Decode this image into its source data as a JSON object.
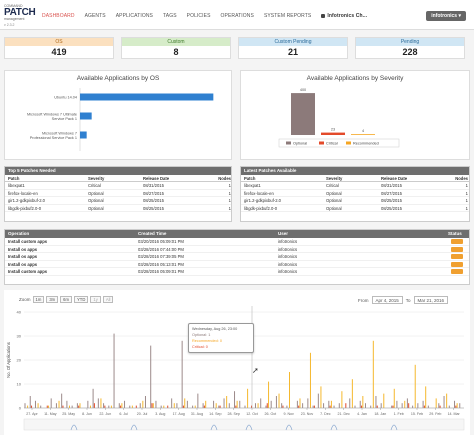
{
  "logo": {
    "line1": "COMMAND",
    "line2": "PATCH",
    "line3": "management",
    "version": "v 2.3.2"
  },
  "nav": {
    "items": [
      "DASHBOARD",
      "AGENTS",
      "APPLICATIONS",
      "TAGS",
      "POLICIES",
      "OPERATIONS",
      "SYSTEM REPORTS"
    ],
    "org": "Infotronics Ch...",
    "user": "infotronics"
  },
  "stats": [
    {
      "label": "OS",
      "value": "419",
      "color": "#fbe0bf"
    },
    {
      "label": "Custom",
      "value": "8",
      "color": "#d6ecc9"
    },
    {
      "label": "Custom Pending",
      "value": "21",
      "color": "#d0e6f4"
    },
    {
      "label": "Pending",
      "value": "228",
      "color": "#d0e6f4"
    }
  ],
  "chart_os": {
    "title": "Available Applications by OS",
    "type": "bar",
    "categories": [
      "Ubuntu 14.04",
      "Microsoft Windows 7 Ultimate Service Pack 1",
      "Microsoft Windows 7 Professional Service Pack 1"
    ],
    "values": [
      400,
      35,
      20
    ],
    "max": 420,
    "color": "#2f80d0"
  },
  "chart_sev": {
    "title": "Available Applications by Severity",
    "type": "bar",
    "categories": [
      "Optional",
      "Critical",
      "Recommended"
    ],
    "values": [
      400,
      23,
      4
    ],
    "max": 420,
    "colors": [
      "#8c7a7a",
      "#e34a2a",
      "#f5a623"
    ]
  },
  "top_patches": {
    "title": "Top 5 Patches Needed",
    "columns": [
      "Patch",
      "Severity",
      "Release Date",
      "Nodes"
    ],
    "rows": [
      [
        "libexpat1",
        "Critical",
        "08/31/2015",
        "1"
      ],
      [
        "firefox-locale-en",
        "Optional",
        "08/27/2015",
        "1"
      ],
      [
        "gir1.2-gdkpixbuf-2.0",
        "Optional",
        "08/25/2015",
        "1"
      ],
      [
        "libgdk-pixbuf2.0-0",
        "Optional",
        "08/25/2015",
        "1"
      ]
    ]
  },
  "latest_patches": {
    "title": "Latest Patches Available",
    "columns": [
      "Patch",
      "Severity",
      "Release Date",
      "Nodes"
    ],
    "rows": [
      [
        "libexpat1",
        "Critical",
        "08/31/2015",
        "1"
      ],
      [
        "firefox-locale-en",
        "Optional",
        "08/27/2015",
        "1"
      ],
      [
        "gir1.2-gdkpixbuf-2.0",
        "Optional",
        "08/25/2015",
        "1"
      ],
      [
        "libgdk-pixbuf2.0-0",
        "Optional",
        "08/25/2015",
        "1"
      ]
    ]
  },
  "operations": {
    "columns": [
      "Operation",
      "Created Time",
      "User",
      "Status"
    ],
    "rows": [
      [
        "Install custom apps",
        "03/20/2016 05:09:01 PM",
        "infotronics"
      ],
      [
        "Install os apps",
        "03/28/2016 07:44:00 PM",
        "infotronics"
      ],
      [
        "Install os apps",
        "03/28/2016 07:39:05 PM",
        "infotronics"
      ],
      [
        "Install os apps",
        "03/28/2016 05:13:01 PM",
        "infotronics"
      ],
      [
        "Install custom apps",
        "03/28/2016 05:09:01 PM",
        "infotronics"
      ]
    ]
  },
  "timeline": {
    "zoom_label": "Zoom",
    "zoom_buttons": [
      "1m",
      "3m",
      "6m",
      "YTD",
      "1y",
      "All"
    ],
    "from_label": "From",
    "from_date": "Apr 4, 2015",
    "to_label": "To",
    "to_date": "Mar 21, 2016",
    "ylabel": "No. Of Applications",
    "yticks": [
      "0",
      "10",
      "20",
      "30",
      "40"
    ],
    "xticks": [
      "27. Apr",
      "11. May",
      "25. May",
      "8. Jun",
      "22. Jun",
      "6. Jul",
      "20. Jul",
      "3. Aug",
      "17. Aug",
      "31. Aug",
      "14. Sep",
      "28. Sep",
      "12. Oct",
      "26. Oct",
      "9. Nov",
      "23. Nov",
      "7. Dec",
      "21. Dec",
      "4. Jan",
      "18. Jan",
      "1. Feb",
      "15. Feb",
      "29. Feb",
      "14. Mar"
    ],
    "tooltip": {
      "date": "Wednesday, Aug 26, 23:00",
      "l1": "Optional: 1",
      "l2": "Recommended: 0",
      "l3": "Critical: 0"
    }
  },
  "chart_data": {
    "type": "bar",
    "ylabel": "No. Of Applications",
    "ylim": [
      0,
      40
    ],
    "series": [
      {
        "name": "Optional",
        "values": [
          2,
          5,
          3,
          1,
          0,
          4,
          2,
          6,
          3,
          1,
          2,
          0,
          3,
          8,
          4,
          2,
          1,
          31,
          2,
          3,
          1,
          0,
          2,
          5,
          26,
          3,
          1,
          0,
          4,
          2,
          28,
          3,
          1,
          6,
          2,
          0,
          3,
          1,
          4,
          2,
          7,
          3,
          1,
          0,
          2,
          4,
          1,
          3,
          5,
          2,
          1,
          0,
          3,
          2,
          4,
          1,
          6,
          2,
          3,
          1,
          2,
          0,
          4,
          1,
          3,
          2,
          1,
          5,
          2,
          0,
          1,
          3,
          2,
          4,
          1,
          2,
          3,
          1,
          0,
          2,
          5,
          1,
          3,
          2
        ]
      },
      {
        "name": "Critical",
        "values": [
          0,
          1,
          0,
          0,
          1,
          0,
          0,
          1,
          0,
          0,
          1,
          0,
          0,
          2,
          0,
          1,
          0,
          0,
          1,
          0,
          0,
          1,
          0,
          0,
          2,
          0,
          0,
          1,
          0,
          0,
          1,
          0,
          0,
          0,
          1,
          0,
          0,
          1,
          0,
          0,
          1,
          0,
          0,
          1,
          0,
          0,
          2,
          0,
          0,
          1,
          0,
          0,
          1,
          0,
          0,
          1,
          0,
          0,
          1,
          0,
          0,
          2,
          0,
          0,
          1,
          0,
          0,
          1,
          0,
          0,
          1,
          0,
          0,
          2,
          0,
          0,
          1,
          0,
          0,
          1,
          0,
          0,
          1,
          0
        ]
      },
      {
        "name": "Recommended",
        "values": [
          1,
          0,
          2,
          0,
          1,
          0,
          3,
          0,
          1,
          0,
          2,
          0,
          1,
          0,
          4,
          0,
          1,
          0,
          2,
          0,
          1,
          0,
          3,
          0,
          2,
          0,
          1,
          0,
          2,
          0,
          4,
          0,
          1,
          0,
          3,
          0,
          2,
          0,
          5,
          0,
          3,
          0,
          8,
          0,
          2,
          0,
          11,
          0,
          6,
          0,
          15,
          0,
          4,
          0,
          23,
          0,
          9,
          0,
          3,
          0,
          7,
          0,
          12,
          0,
          5,
          0,
          28,
          0,
          6,
          0,
          8,
          0,
          3,
          0,
          18,
          0,
          9,
          0,
          4,
          0,
          6,
          0,
          2,
          0
        ]
      }
    ],
    "colors": [
      "#9c8a8a",
      "#e34a2a",
      "#f5b82e"
    ]
  }
}
